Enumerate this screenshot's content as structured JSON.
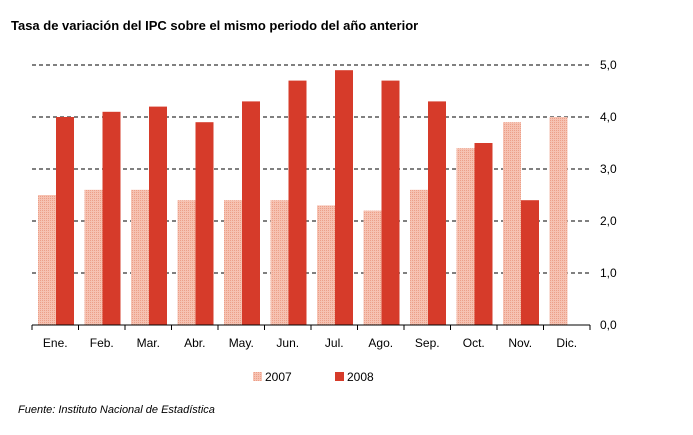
{
  "title": "Tasa de variación del IPC sobre el mismo periodo del año anterior",
  "source": "Fuente: Instituto Nacional de Estadística",
  "chart_data": {
    "type": "bar",
    "categories": [
      "Ene.",
      "Feb.",
      "Mar.",
      "Abr.",
      "May.",
      "Jun.",
      "Jul.",
      "Ago.",
      "Sep.",
      "Oct.",
      "Nov.",
      "Dic."
    ],
    "series": [
      {
        "name": "2007",
        "color": "#f4b9a6",
        "values": [
          2.5,
          2.6,
          2.6,
          2.4,
          2.4,
          2.4,
          2.3,
          2.2,
          2.6,
          3.4,
          3.9,
          4.0
        ]
      },
      {
        "name": "2008",
        "color": "#d63b2a",
        "values": [
          4.0,
          4.1,
          4.2,
          3.9,
          4.3,
          4.7,
          4.9,
          4.7,
          4.3,
          3.5,
          2.4,
          null
        ]
      }
    ],
    "ylim": [
      0,
      5
    ],
    "yticks": [
      "0,0",
      "1,0",
      "2,0",
      "3,0",
      "4,0",
      "5,0"
    ],
    "grid": true,
    "legend": "bottom"
  }
}
